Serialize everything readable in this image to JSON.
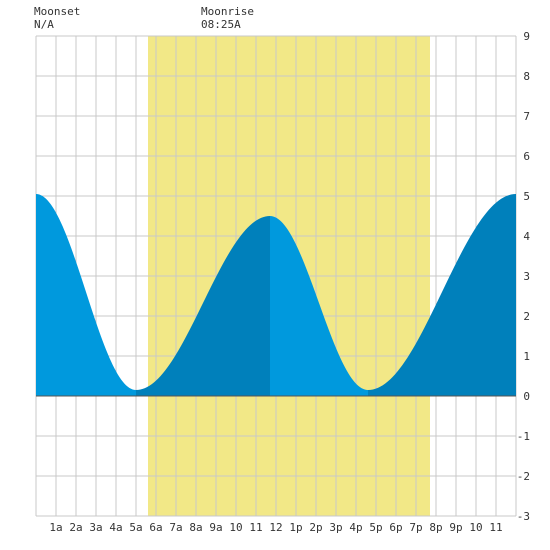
{
  "header": {
    "moonset_label": "Moonset",
    "moonset_value": "N/A",
    "moonrise_label": "Moonrise",
    "moonrise_value": "08:25A"
  },
  "colors": {
    "daylight": "#f2e887",
    "water_falling": "#0099dd",
    "water_rising": "#0080bb",
    "grid": "#c8c8c8",
    "baseline": "#555555",
    "background": "#ffffff"
  },
  "chart_data": {
    "type": "area",
    "title": "",
    "xlabel": "",
    "ylabel": "",
    "xlim": [
      0,
      24
    ],
    "ylim": [
      -3,
      9
    ],
    "grid": true,
    "x_tick_labels": [
      {
        "x": 1,
        "label": "1a"
      },
      {
        "x": 2,
        "label": "2a"
      },
      {
        "x": 3,
        "label": "3a"
      },
      {
        "x": 4,
        "label": "4a"
      },
      {
        "x": 5,
        "label": "5a"
      },
      {
        "x": 6,
        "label": "6a"
      },
      {
        "x": 7,
        "label": "7a"
      },
      {
        "x": 8,
        "label": "8a"
      },
      {
        "x": 9,
        "label": "9a"
      },
      {
        "x": 10,
        "label": "10"
      },
      {
        "x": 11,
        "label": "11"
      },
      {
        "x": 12,
        "label": "12"
      },
      {
        "x": 13,
        "label": "1p"
      },
      {
        "x": 14,
        "label": "2p"
      },
      {
        "x": 15,
        "label": "3p"
      },
      {
        "x": 16,
        "label": "4p"
      },
      {
        "x": 17,
        "label": "5p"
      },
      {
        "x": 18,
        "label": "6p"
      },
      {
        "x": 19,
        "label": "7p"
      },
      {
        "x": 20,
        "label": "8p"
      },
      {
        "x": 21,
        "label": "9p"
      },
      {
        "x": 22,
        "label": "10"
      },
      {
        "x": 23,
        "label": "11"
      }
    ],
    "y_ticks": [
      -3,
      -2,
      -1,
      0,
      1,
      2,
      3,
      4,
      5,
      6,
      7,
      8,
      9
    ],
    "daylight": {
      "start": 5.6,
      "end": 19.7
    },
    "tide_extremes": [
      {
        "x": 0,
        "y": 5.05
      },
      {
        "x": 5.0,
        "y": 0.15
      },
      {
        "x": 11.7,
        "y": 4.5
      },
      {
        "x": 16.6,
        "y": 0.15
      },
      {
        "x": 24.0,
        "y": 5.05
      }
    ]
  }
}
